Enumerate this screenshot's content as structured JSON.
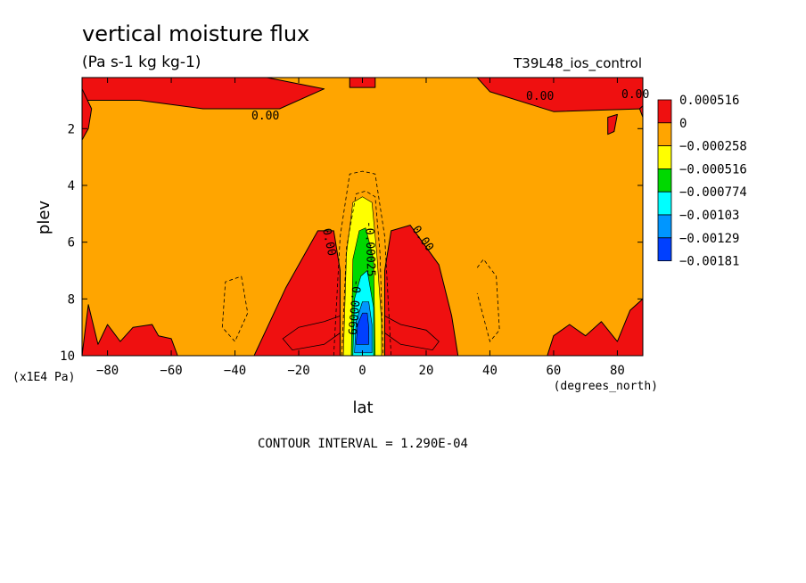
{
  "chart_data": {
    "type": "heatmap",
    "title": "vertical moisture flux",
    "subtitle": "(Pa s-1 kg kg-1)",
    "dataset_label": "T39L48_ios_control",
    "xlabel": "lat",
    "x_units": "(degrees_north)",
    "ylabel": "plev",
    "y_units": "(x1E4 Pa)",
    "xlim": [
      -88,
      88
    ],
    "ylim": [
      10,
      0.2
    ],
    "x_ticks": [
      -80,
      -60,
      -40,
      -20,
      0,
      20,
      40,
      60,
      80
    ],
    "y_ticks": [
      2,
      4,
      6,
      8,
      10
    ],
    "x_tick_labels": [
      "−80",
      "−60",
      "−40",
      "−20",
      "0",
      "20",
      "40",
      "60",
      "80"
    ],
    "y_tick_labels": [
      "2",
      "4",
      "6",
      "8",
      "10"
    ],
    "colorbar": [
      {
        "label": "0.000516",
        "color": "#ef1010"
      },
      {
        "label": "0",
        "color": "#ffa500"
      },
      {
        "label": "−0.000258",
        "color": "#ffff00"
      },
      {
        "label": "−0.000516",
        "color": "#00d800"
      },
      {
        "label": "−0.000774",
        "color": "#00ffff"
      },
      {
        "label": "−0.00103",
        "color": "#0096ff"
      },
      {
        "label": "−0.00129",
        "color": "#0040ff"
      },
      {
        "label": "−0.00181",
        "color": null
      }
    ],
    "contour_labels": [
      "0.00",
      "0.00",
      "0.00",
      "0.00",
      "0.00",
      "-0.00025",
      "-0.00069"
    ],
    "contour_interval_text": "CONTOUR INTERVAL = 1.290E-04",
    "regions": [
      {
        "name": "top-left-positive",
        "value_class": "positive",
        "lat": [
          -88,
          -58,
          -30,
          -12,
          -26,
          -50,
          -70,
          -88
        ],
        "plev": [
          0.2,
          0.2,
          0.2,
          0.6,
          1.3,
          1.3,
          1.0,
          1.0
        ]
      },
      {
        "name": "top-center-positive",
        "value_class": "positive",
        "lat": [
          -4,
          4,
          4,
          -4
        ],
        "plev": [
          0.2,
          0.2,
          0.55,
          0.55
        ]
      },
      {
        "name": "top-right-positive",
        "value_class": "positive",
        "lat": [
          36,
          88,
          88,
          60,
          40
        ],
        "plev": [
          0.2,
          0.2,
          1.3,
          1.4,
          0.7
        ]
      },
      {
        "name": "left-edge-positive",
        "value_class": "positive",
        "lat": [
          -88,
          -85,
          -86,
          -88
        ],
        "plev": [
          0.6,
          1.3,
          2.0,
          2.4
        ]
      },
      {
        "name": "right-edge-positive",
        "value_class": "positive",
        "lat": [
          87,
          88,
          88
        ],
        "plev": [
          1.3,
          1.2,
          1.6
        ]
      },
      {
        "name": "right-island-positive",
        "value_class": "positive",
        "lat": [
          77,
          80,
          79,
          77
        ],
        "plev": [
          1.6,
          1.5,
          2.1,
          2.2
        ]
      },
      {
        "name": "bottom-left-positive",
        "value_class": "positive",
        "lat": [
          -88,
          -86,
          -83,
          -80,
          -76,
          -72,
          -66,
          -64,
          -60,
          -58,
          -88
        ],
        "plev": [
          10,
          8.2,
          9.6,
          8.9,
          9.5,
          9.0,
          8.9,
          9.3,
          9.4,
          10,
          10
        ]
      },
      {
        "name": "left-lobe-positive",
        "value_class": "positive",
        "lat": [
          -34,
          -24,
          -14,
          -9,
          -7,
          -7,
          -34
        ],
        "plev": [
          10,
          7.6,
          5.6,
          5.6,
          7.0,
          10,
          10
        ]
      },
      {
        "name": "right-lobe-positive",
        "value_class": "positive",
        "lat": [
          7,
          7,
          9,
          15,
          24,
          28,
          30,
          7
        ],
        "plev": [
          10,
          7.0,
          5.6,
          5.4,
          6.8,
          8.6,
          10,
          10
        ]
      },
      {
        "name": "bottom-right-positive",
        "value_class": "positive",
        "lat": [
          58,
          60,
          65,
          70,
          75,
          80,
          84,
          88,
          88,
          58
        ],
        "plev": [
          10,
          9.3,
          8.9,
          9.3,
          8.8,
          9.5,
          8.4,
          8.0,
          10,
          10
        ]
      },
      {
        "name": "core-yellow",
        "value_class": "band-1",
        "lat": [
          -6,
          -5,
          -3,
          0,
          3,
          4.5,
          6,
          6
        ],
        "plev": [
          10,
          6.4,
          4.6,
          4.4,
          4.6,
          6.4,
          8.8,
          10
        ]
      },
      {
        "name": "core-green",
        "value_class": "band-2",
        "lat": [
          -3.5,
          -3,
          -1,
          1,
          3.5,
          4,
          4
        ],
        "plev": [
          10,
          6.6,
          5.6,
          5.5,
          6.6,
          10,
          10
        ]
      },
      {
        "name": "core-cyan",
        "value_class": "band-3",
        "lat": [
          -3,
          -2.5,
          -0.5,
          1.5,
          3.5,
          3.5
        ],
        "plev": [
          10,
          8.0,
          7.2,
          7.0,
          8.3,
          10
        ]
      },
      {
        "name": "core-mid-blue",
        "value_class": "band-4",
        "lat": [
          -2.5,
          -2,
          0,
          2,
          3,
          3
        ],
        "plev": [
          9.9,
          8.8,
          8.1,
          8.1,
          8.9,
          9.9
        ]
      },
      {
        "name": "core-deep-blue",
        "value_class": "band-5",
        "lat": [
          -2,
          -1.5,
          0,
          1.5,
          2,
          2
        ],
        "plev": [
          9.6,
          8.9,
          8.5,
          8.5,
          9.0,
          9.6
        ]
      }
    ],
    "contours": [
      {
        "name": "outer-core-dashed",
        "style": "dashed",
        "lat": [
          -9,
          -7,
          -4,
          0,
          4,
          7,
          9,
          9,
          -9,
          -9
        ],
        "plev": [
          10,
          5.8,
          3.6,
          3.5,
          3.6,
          5.8,
          10,
          10,
          10,
          10
        ]
      },
      {
        "name": "mid-core-dashed",
        "style": "dashed",
        "lat": [
          -6.5,
          -5,
          -2,
          1,
          4,
          5.5,
          6.5
        ],
        "plev": [
          10,
          6.2,
          4.3,
          4.2,
          4.4,
          6.4,
          10
        ]
      },
      {
        "name": "left-ring-dashed",
        "style": "dashed",
        "lat": [
          -38,
          -36,
          -40,
          -44,
          -43,
          -38
        ],
        "plev": [
          7.2,
          8.5,
          9.5,
          9.0,
          7.4,
          7.2
        ]
      },
      {
        "name": "right-ring-dashed",
        "style": "dashed",
        "lat": [
          36,
          38,
          42,
          43,
          40,
          36
        ],
        "plev": [
          6.9,
          6.6,
          7.2,
          9.1,
          9.5,
          7.8
        ]
      },
      {
        "name": "lower-left-solid",
        "style": "solid",
        "lat": [
          -7,
          -12,
          -20,
          -25,
          -22,
          -12,
          -7
        ],
        "plev": [
          8.6,
          8.8,
          9.0,
          9.4,
          9.8,
          9.6,
          9.2
        ]
      },
      {
        "name": "lower-right-solid",
        "style": "solid",
        "lat": [
          7,
          12,
          20,
          24,
          22,
          12,
          7
        ],
        "plev": [
          8.6,
          8.9,
          9.1,
          9.5,
          9.8,
          9.6,
          9.2
        ]
      }
    ]
  }
}
